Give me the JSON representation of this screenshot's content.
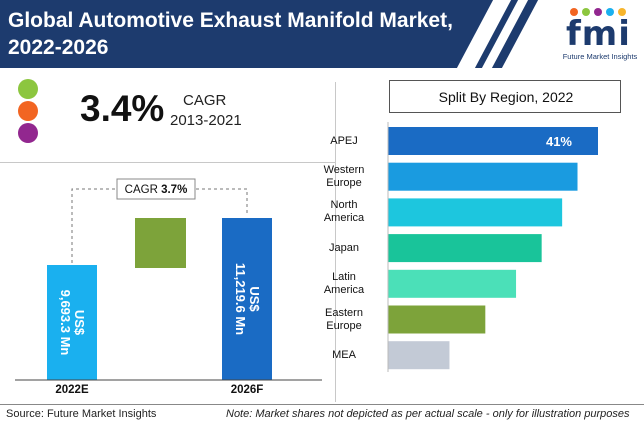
{
  "header": {
    "title_line1": "Global Automotive Exhaust Manifold Market,",
    "title_line2": "2022-2026",
    "logo_text": "fmi",
    "logo_tagline": "Future Market Insights"
  },
  "cagr_highlight": {
    "value": "3.4%",
    "label": "CAGR",
    "period": "2013-2021",
    "dot_colors": [
      "#8cc63f",
      "#f26522",
      "#92278f"
    ]
  },
  "colors": {
    "header_bg": "#1d3b6e",
    "bar_2022": "#1ab0ef",
    "bar_2026": "#1a6bc4",
    "growth_box": "#7da33a"
  },
  "chart_data": [
    {
      "type": "bar",
      "title": "",
      "categories": [
        "2022E",
        "2026F"
      ],
      "values": [
        9693.3,
        11219.6
      ],
      "value_labels": [
        "US$ 9,693.3 Mn",
        "US$ 11,219.6 Mn"
      ],
      "annotation": {
        "label": "CAGR",
        "value": "3.7%"
      },
      "xlabel": "",
      "ylabel": ""
    },
    {
      "type": "bar",
      "orientation": "horizontal",
      "title": "Split By Region, 2022",
      "categories": [
        "APEJ",
        "Western Europe",
        "North America",
        "Japan",
        "Latin America",
        "Eastern Europe",
        "MEA"
      ],
      "category_lines": [
        [
          "APEJ"
        ],
        [
          "Western",
          "Europe"
        ],
        [
          "North",
          "America"
        ],
        [
          "Japan"
        ],
        [
          "Latin",
          "America"
        ],
        [
          "Eastern",
          "Europe"
        ],
        [
          "MEA"
        ]
      ],
      "values": [
        41,
        37,
        34,
        30,
        25,
        19,
        12
      ],
      "data_labels": [
        "41%",
        "",
        "",
        "",
        "",
        "",
        ""
      ],
      "colors": [
        "#1a6bc4",
        "#1a9be0",
        "#1dc6de",
        "#19c49a",
        "#4be0b8",
        "#7da33a",
        "#c3cad6"
      ],
      "xlim": [
        0,
        41
      ]
    }
  ],
  "footer": {
    "source": "Source: Future Market Insights",
    "note": "Note: Market shares not depicted as per actual scale - only for illustration purposes"
  }
}
